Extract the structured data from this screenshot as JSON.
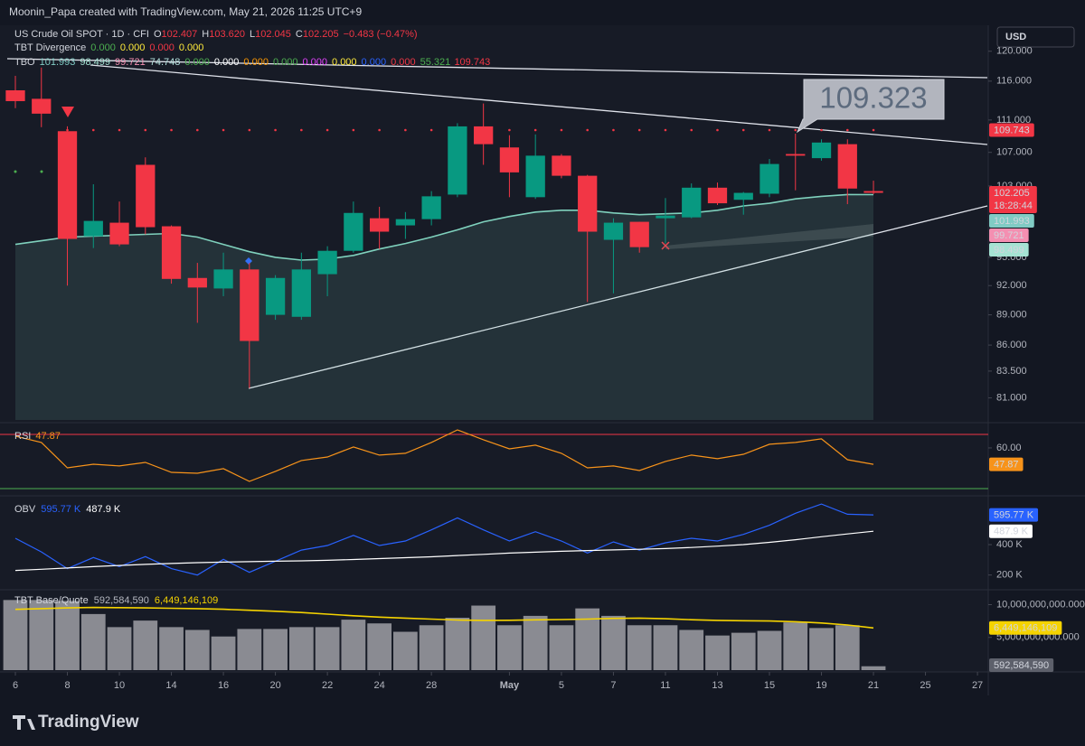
{
  "header": "Moonin_Papa created with TradingView.com, May 21, 2026 11:25 UTC+9",
  "brand": "TradingView",
  "chart_data": [
    {
      "type": "candlestick",
      "title": "US Crude Oil SPOT · 1D · CFI",
      "ohlc": [
        {
          "prefix": "O",
          "value": 102.407
        },
        {
          "prefix": "H",
          "value": 103.62,
          "label": "103.620"
        },
        {
          "prefix": "L",
          "value": 102.045
        },
        {
          "prefix": "C",
          "value": 102.205
        }
      ],
      "change": "−0.483 (−0.47%)",
      "change_color": "#f23645",
      "divergence_title": "TBT Divergence",
      "divergence": [
        {
          "value": 0,
          "label": "0.000",
          "color": "#4caf50"
        },
        {
          "value": 0,
          "label": "0.000",
          "color": "#ffeb3b"
        },
        {
          "value": 0,
          "label": "0.000",
          "color": "#f23645"
        },
        {
          "value": 0,
          "label": "0.000",
          "color": "#ffeb3b"
        }
      ],
      "tbo_title": "TBO",
      "tbo": [
        {
          "value": 101.993,
          "color": "#80cbc4"
        },
        {
          "value": 98.499,
          "color": "#a5e3d3"
        },
        {
          "value": 99.721,
          "color": "#f48fb1"
        },
        {
          "value": 74.748,
          "color": "#b2dfdb"
        },
        {
          "value": 0,
          "label": "0.000",
          "color": "#4caf50"
        },
        {
          "value": 0,
          "label": "0.000",
          "color": "#ffffff"
        },
        {
          "value": 0,
          "label": "0.000",
          "color": "#ff9800"
        },
        {
          "value": 0,
          "label": "0.000",
          "color": "#4caf50"
        },
        {
          "value": 0,
          "label": "0.000",
          "color": "#e040fb"
        },
        {
          "value": 0,
          "label": "0.000",
          "color": "#ffeb3b"
        },
        {
          "value": 0,
          "label": "0.000",
          "color": "#2962ff"
        },
        {
          "value": 0,
          "label": "0.000",
          "color": "#f23645"
        },
        {
          "value": 55.321,
          "color": "#4caf50"
        },
        {
          "value": 109.743,
          "color": "#f23645"
        }
      ],
      "countdown": "18:28:44",
      "callout": 109.323,
      "currency": "USD",
      "xticks": [
        {
          "value": 0,
          "label": "6"
        },
        {
          "value": 2,
          "label": "8"
        },
        {
          "value": 4,
          "label": "10"
        },
        {
          "value": 6,
          "label": "14"
        },
        {
          "value": 8,
          "label": "16"
        },
        {
          "value": 10,
          "label": "20"
        },
        {
          "value": 12,
          "label": "22"
        },
        {
          "value": 14,
          "label": "24"
        },
        {
          "value": 16,
          "label": "28"
        },
        {
          "value": 19,
          "label": "May"
        },
        {
          "value": 21,
          "label": "5"
        },
        {
          "value": 23,
          "label": "7"
        },
        {
          "value": 25,
          "label": "11"
        },
        {
          "value": 27,
          "label": "13"
        },
        {
          "value": 29,
          "label": "15"
        },
        {
          "value": 31,
          "label": "19"
        },
        {
          "value": 33,
          "label": "21"
        },
        {
          "value": 35,
          "label": "25"
        },
        {
          "value": 37,
          "label": "27"
        }
      ],
      "xlim": [
        -0.313,
        37.38
      ],
      "ylim": [
        79,
        122.7
      ],
      "log_scale": true,
      "yticks": [
        {
          "value": 120,
          "label": "120.000"
        },
        {
          "value": 116,
          "label": "116.000"
        },
        {
          "value": 111,
          "label": "111.000"
        },
        {
          "value": 107,
          "label": "107.000"
        },
        {
          "value": 103,
          "label": "103.000"
        },
        {
          "value": 95,
          "label": "95.000"
        },
        {
          "value": 92,
          "label": "92.000"
        },
        {
          "value": 89,
          "label": "89.000"
        },
        {
          "value": 86,
          "label": "86.000"
        },
        {
          "value": 83.5,
          "label": "83.500"
        },
        {
          "value": 81,
          "label": "81.000"
        }
      ],
      "up_color": "#089981",
      "down_color": "#f23645",
      "open": [
        114.8,
        113.7,
        109.6,
        97.3,
        98.8,
        105.5,
        98.4,
        92.8,
        91.7,
        93.7,
        89.0,
        88.8,
        93.2,
        95.7,
        99.3,
        98.5,
        99.2,
        102.0,
        110.2,
        107.6,
        101.7,
        106.6,
        104.2,
        96.9,
        98.9,
        99.3,
        99.4,
        102.8,
        101.4,
        102.1,
        106.8,
        106.3,
        108.0,
        102.407
      ],
      "high": [
        116.7,
        117.8,
        110.2,
        103.2,
        101.2,
        106.4,
        98.5,
        94.4,
        95.5,
        94.4,
        93.1,
        95.5,
        96.2,
        101.2,
        100.6,
        100.0,
        102.4,
        110.6,
        113.1,
        109.1,
        109.2,
        106.8,
        104.3,
        99.3,
        98.9,
        101.6,
        103.3,
        103.4,
        102.3,
        106.2,
        109.3,
        108.6,
        108.6,
        103.62
      ],
      "low": [
        112.5,
        110.1,
        92.0,
        96.0,
        96.2,
        97.5,
        92.2,
        88.2,
        90.9,
        81.9,
        88.5,
        88.5,
        90.9,
        95.5,
        95.9,
        97.0,
        98.5,
        101.7,
        105.5,
        101.7,
        101.5,
        103.9,
        90.3,
        91.2,
        95.5,
        96.5,
        99.3,
        100.8,
        99.7,
        101.7,
        102.5,
        106.0,
        100.9,
        102.045
      ],
      "close": [
        113.4,
        111.8,
        97.0,
        99.0,
        96.4,
        98.3,
        92.7,
        91.8,
        93.7,
        86.4,
        92.8,
        93.7,
        95.7,
        99.9,
        97.8,
        99.2,
        101.8,
        110.2,
        108.0,
        104.6,
        106.6,
        104.2,
        97.8,
        98.8,
        96.1,
        99.6,
        102.8,
        101.0,
        102.2,
        105.6,
        106.6,
        108.2,
        102.7,
        102.205
      ],
      "line": {
        "color": "#7fd1bd",
        "values": [
          96.4,
          96.8,
          97.2,
          97.3,
          97.4,
          97.5,
          97.6,
          97.2,
          96.4,
          95.6,
          95.0,
          94.7,
          94.8,
          95.2,
          95.9,
          96.5,
          97.2,
          98.0,
          98.9,
          99.5,
          100.0,
          100.2,
          100.2,
          99.9,
          99.7,
          99.8,
          99.9,
          100.2,
          100.7,
          101.0,
          101.5,
          101.8,
          102.0,
          101.993
        ]
      }
    },
    {
      "type": "line",
      "title": "RSI",
      "ylim": [
        25.3,
        77.3
      ],
      "yticks": [
        {
          "value": 60,
          "label": "60.00"
        }
      ],
      "levels": [
        {
          "value": 70,
          "color": "#f23645"
        },
        {
          "value": 30,
          "color": "#4caf50"
        }
      ],
      "series": [
        {
          "name": "RSI",
          "color": "#f7931a",
          "values": [
            68.7,
            64.0,
            45.3,
            48.0,
            46.7,
            49.3,
            42.0,
            41.3,
            44.7,
            35.3,
            42.7,
            50.7,
            53.3,
            60.7,
            54.7,
            56.0,
            64.0,
            73.3,
            66.0,
            59.3,
            62.0,
            56.0,
            45.3,
            46.7,
            43.3,
            50.0,
            54.7,
            52.0,
            55.3,
            62.7,
            64.0,
            66.7,
            51.3,
            47.87
          ]
        }
      ]
    },
    {
      "type": "line",
      "title": "OBV",
      "ylim": [
        109000,
        715000
      ],
      "yticks": [
        {
          "value": 400000,
          "label": "400 K"
        },
        {
          "value": 200000,
          "label": "200 K"
        }
      ],
      "series": [
        {
          "color": "#2962ff",
          "last_label": "595.77 K",
          "values": [
            442000,
            352000,
            242000,
            315000,
            255000,
            321000,
            242000,
            200000,
            303000,
            218000,
            291000,
            364000,
            394000,
            461000,
            394000,
            424000,
            497000,
            576000,
            497000,
            424000,
            485000,
            424000,
            345000,
            418000,
            364000,
            412000,
            442000,
            424000,
            467000,
            527000,
            606000,
            667000,
            600000,
            595770
          ]
        },
        {
          "color": "#ffffff",
          "last_label": "487.9 K",
          "values": [
            230000,
            238000,
            246000,
            255000,
            263000,
            270000,
            276000,
            281000,
            285000,
            288000,
            291000,
            293000,
            297000,
            302000,
            308000,
            314000,
            320000,
            328000,
            336000,
            344000,
            350000,
            356000,
            361000,
            365000,
            369000,
            374000,
            381000,
            390000,
            400000,
            415000,
            432000,
            452000,
            470000,
            487900
          ]
        }
      ]
    },
    {
      "type": "bar",
      "title": "TBT Base/Quote",
      "ylim": [
        0,
        12140000000
      ],
      "yticks": [
        {
          "value": 10000000000,
          "label": "10,000,000,000.000"
        },
        {
          "value": 5000000000,
          "label": "5,000,000,000.000"
        }
      ],
      "bars": {
        "color": "#8a8b92",
        "last_label": "592,584,590",
        "values": [
          10710000000,
          10710000000,
          10570000000,
          8570000000,
          6570000000,
          7570000000,
          6570000000,
          6140000000,
          5140000000,
          6290000000,
          6290000000,
          6570000000,
          6570000000,
          7710000000,
          7140000000,
          5860000000,
          6860000000,
          8000000000,
          9860000000,
          6860000000,
          8290000000,
          6860000000,
          9430000000,
          8290000000,
          6860000000,
          6860000000,
          6140000000,
          5290000000,
          5710000000,
          6000000000,
          7290000000,
          6430000000,
          6860000000,
          592584590
        ]
      },
      "line": {
        "color": "#f5d300",
        "last_label": "6,449,146,109",
        "values": [
          9290000000,
          9400000000,
          9500000000,
          9570000000,
          9550000000,
          9500000000,
          9450000000,
          9400000000,
          9300000000,
          9150000000,
          9000000000,
          8800000000,
          8550000000,
          8300000000,
          8100000000,
          7950000000,
          7800000000,
          7650000000,
          7600000000,
          7620000000,
          7680000000,
          7720000000,
          7800000000,
          7900000000,
          7950000000,
          7850000000,
          7700000000,
          7600000000,
          7550000000,
          7500000000,
          7400000000,
          7200000000,
          6900000000,
          6449146109
        ]
      }
    }
  ]
}
